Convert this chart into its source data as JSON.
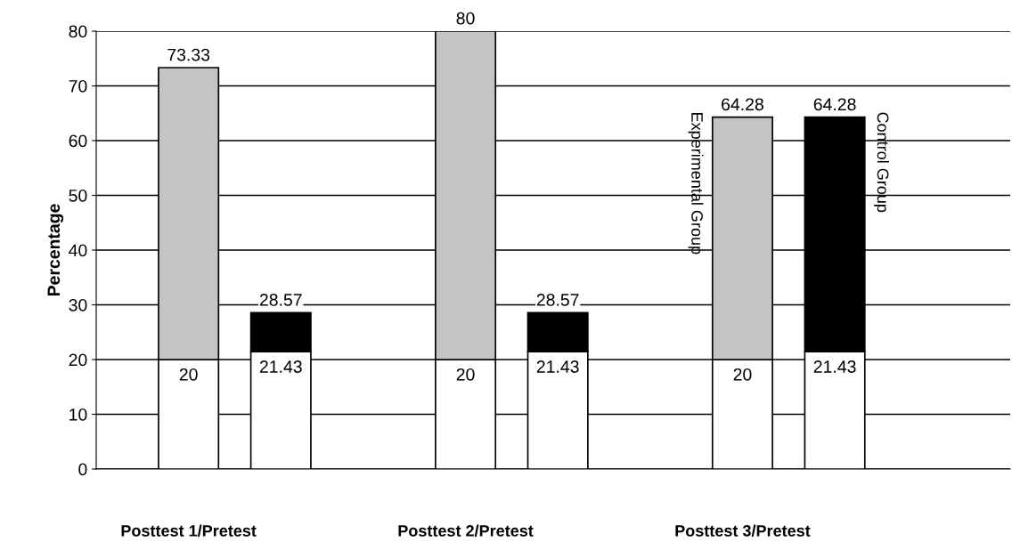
{
  "chart_data": {
    "type": "bar",
    "stacked": true,
    "ylabel": "Percentage",
    "categories": [
      "Posttest 1/Pretest",
      null,
      "Posttest 2/Pretest",
      null,
      "Posttest 3/Pretest",
      null
    ],
    "series": [
      {
        "color": "#ffffff",
        "values": [
          20,
          21.43,
          20,
          21.43,
          20,
          21.43
        ],
        "value_labels": [
          "20",
          "21.43",
          "20",
          "21.43",
          "20",
          "21.43"
        ]
      },
      {
        "name": "Experimental Group",
        "color": "#c4c4c4",
        "values": [
          53.33,
          null,
          60,
          null,
          44.28,
          null
        ]
      },
      {
        "name": "Control Group",
        "color": "#000000",
        "values": [
          null,
          7.14,
          null,
          7.14,
          null,
          42.85
        ]
      }
    ],
    "totals": [
      "73.33",
      "28.57",
      "80",
      "28.57",
      "64.28",
      "64.28"
    ],
    "ylim": [
      0,
      80
    ],
    "yticks": [
      0,
      10,
      20,
      30,
      40,
      50,
      60,
      70,
      80
    ],
    "grid": "y"
  }
}
